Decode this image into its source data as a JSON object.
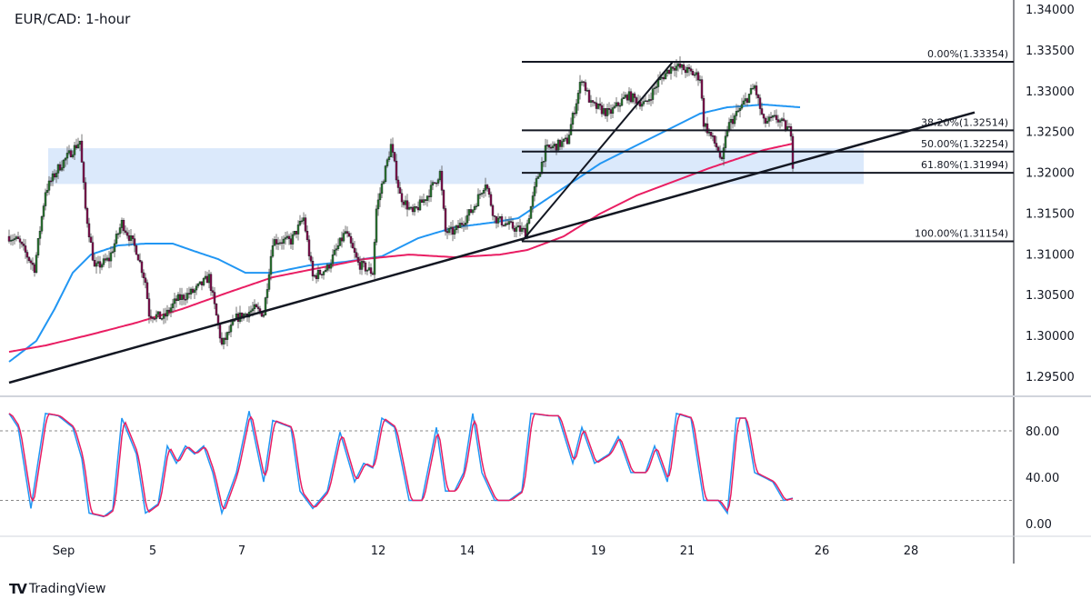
{
  "chart_data": {
    "type": "candlestick",
    "title": "EUR/CAD: 1-hour",
    "price_axis": {
      "ticks": [
        "1.34000",
        "1.33500",
        "1.33000",
        "1.32500",
        "1.32000",
        "1.31500",
        "1.31000",
        "1.30500",
        "1.30000",
        "1.29500"
      ],
      "range": [
        1.29422,
        1.34
      ]
    },
    "time_axis": {
      "ticks": [
        {
          "label": "Sep",
          "bar": 30
        },
        {
          "label": "5",
          "bar": 79
        },
        {
          "label": "7",
          "bar": 128
        },
        {
          "label": "12",
          "bar": 203
        },
        {
          "label": "14",
          "bar": 252
        },
        {
          "label": "19",
          "bar": 324
        },
        {
          "label": "21",
          "bar": 373
        },
        {
          "label": "26",
          "bar": 447
        },
        {
          "label": "28",
          "bar": 496
        }
      ]
    },
    "price_path": [
      [
        0,
        1.31215
      ],
      [
        5,
        1.3116
      ],
      [
        14,
        1.30825
      ],
      [
        20,
        1.31772
      ],
      [
        27,
        1.3205
      ],
      [
        39,
        1.32385
      ],
      [
        42,
        1.3155
      ],
      [
        47,
        1.30825
      ],
      [
        55,
        1.30936
      ],
      [
        62,
        1.31382
      ],
      [
        70,
        1.31048
      ],
      [
        75,
        1.30658
      ],
      [
        77,
        1.30268
      ],
      [
        85,
        1.30212
      ],
      [
        92,
        1.30435
      ],
      [
        102,
        1.30547
      ],
      [
        110,
        1.30714
      ],
      [
        117,
        1.29878
      ],
      [
        125,
        1.30212
      ],
      [
        135,
        1.30324
      ],
      [
        140,
        1.30268
      ],
      [
        145,
        1.3116
      ],
      [
        155,
        1.3116
      ],
      [
        162,
        1.31438
      ],
      [
        167,
        1.30714
      ],
      [
        175,
        1.30825
      ],
      [
        185,
        1.31271
      ],
      [
        192,
        1.30881
      ],
      [
        200,
        1.30769
      ],
      [
        202,
        1.3155
      ],
      [
        210,
        1.32329
      ],
      [
        215,
        1.31716
      ],
      [
        222,
        1.31493
      ],
      [
        230,
        1.31716
      ],
      [
        237,
        1.31995
      ],
      [
        240,
        1.31271
      ],
      [
        245,
        1.31271
      ],
      [
        255,
        1.3155
      ],
      [
        262,
        1.31883
      ],
      [
        267,
        1.31438
      ],
      [
        277,
        1.31326
      ],
      [
        284,
        1.31271
      ],
      [
        290,
        1.31883
      ],
      [
        295,
        1.32273
      ],
      [
        307,
        1.32385
      ],
      [
        315,
        1.33164
      ],
      [
        320,
        1.3283
      ],
      [
        330,
        1.32719
      ],
      [
        340,
        1.32942
      ],
      [
        350,
        1.3283
      ],
      [
        357,
        1.33109
      ],
      [
        365,
        1.33309
      ],
      [
        370,
        1.33276
      ],
      [
        380,
        1.33164
      ],
      [
        382,
        1.32607
      ],
      [
        390,
        1.32273
      ],
      [
        392,
        1.32106
      ],
      [
        395,
        1.32552
      ],
      [
        402,
        1.32775
      ],
      [
        410,
        1.33053
      ],
      [
        415,
        1.32607
      ],
      [
        422,
        1.32663
      ],
      [
        430,
        1.32496
      ],
      [
        431,
        1.32106
      ]
    ],
    "ma_blue": [
      [
        0,
        1.29678
      ],
      [
        15,
        1.29934
      ],
      [
        25,
        1.30324
      ],
      [
        35,
        1.30769
      ],
      [
        45,
        1.30992
      ],
      [
        60,
        1.31104
      ],
      [
        75,
        1.31126
      ],
      [
        90,
        1.31126
      ],
      [
        100,
        1.31048
      ],
      [
        115,
        1.30936
      ],
      [
        130,
        1.30769
      ],
      [
        145,
        1.30769
      ],
      [
        165,
        1.30859
      ],
      [
        185,
        1.30903
      ],
      [
        205,
        1.3097
      ],
      [
        225,
        1.31193
      ],
      [
        245,
        1.31326
      ],
      [
        265,
        1.31382
      ],
      [
        280,
        1.31438
      ],
      [
        295,
        1.31661
      ],
      [
        310,
        1.31883
      ],
      [
        325,
        1.32106
      ],
      [
        345,
        1.32329
      ],
      [
        365,
        1.32552
      ],
      [
        380,
        1.32719
      ],
      [
        395,
        1.32797
      ],
      [
        415,
        1.3283
      ],
      [
        435,
        1.32797
      ]
    ],
    "ma_magenta": [
      [
        0,
        1.298
      ],
      [
        20,
        1.29878
      ],
      [
        45,
        1.30012
      ],
      [
        70,
        1.30157
      ],
      [
        95,
        1.30324
      ],
      [
        120,
        1.30524
      ],
      [
        145,
        1.30714
      ],
      [
        170,
        1.30825
      ],
      [
        195,
        1.30936
      ],
      [
        220,
        1.30992
      ],
      [
        245,
        1.30959
      ],
      [
        270,
        1.30992
      ],
      [
        285,
        1.31048
      ],
      [
        305,
        1.31215
      ],
      [
        325,
        1.31493
      ],
      [
        345,
        1.31716
      ],
      [
        365,
        1.31883
      ],
      [
        385,
        1.3205
      ],
      [
        400,
        1.32162
      ],
      [
        415,
        1.32273
      ],
      [
        431,
        1.32351
      ]
    ],
    "zone": [
      1.31857,
      1.32295
    ],
    "trendline": [
      [
        0,
        1.29422
      ],
      [
        531,
        1.32734
      ]
    ],
    "fib": {
      "start_bar": 282,
      "anchor": [
        [
          282,
          1.31154
        ],
        [
          365,
          1.33354
        ]
      ],
      "levels": [
        {
          "label": "0.00%(1.33354)",
          "price": 1.33354
        },
        {
          "label": "38.20%(1.32514)",
          "price": 1.32514
        },
        {
          "label": "50.00%(1.32254)",
          "price": 1.32254
        },
        {
          "label": "61.80%(1.31994)",
          "price": 1.31994
        },
        {
          "label": "100.00%(1.31154)",
          "price": 1.31154
        }
      ]
    },
    "stochastic": {
      "ticks": [
        "80.00",
        "40.00",
        "0.00"
      ],
      "levels": [
        80,
        20
      ],
      "path": [
        [
          0,
          95
        ],
        [
          5,
          83
        ],
        [
          12,
          13
        ],
        [
          20,
          95
        ],
        [
          27,
          93
        ],
        [
          35,
          83
        ],
        [
          40,
          56
        ],
        [
          44,
          9
        ],
        [
          52,
          6
        ],
        [
          57,
          12
        ],
        [
          62,
          91
        ],
        [
          70,
          60
        ],
        [
          75,
          9
        ],
        [
          82,
          17
        ],
        [
          87,
          67
        ],
        [
          92,
          52
        ],
        [
          97,
          67
        ],
        [
          102,
          60
        ],
        [
          107,
          67
        ],
        [
          112,
          44
        ],
        [
          117,
          9
        ],
        [
          125,
          44
        ],
        [
          132,
          97
        ],
        [
          140,
          36
        ],
        [
          145,
          89
        ],
        [
          155,
          83
        ],
        [
          160,
          28
        ],
        [
          167,
          13
        ],
        [
          175,
          28
        ],
        [
          182,
          79
        ],
        [
          190,
          36
        ],
        [
          195,
          52
        ],
        [
          200,
          48
        ],
        [
          205,
          91
        ],
        [
          212,
          83
        ],
        [
          220,
          20
        ],
        [
          227,
          20
        ],
        [
          235,
          83
        ],
        [
          240,
          28
        ],
        [
          245,
          28
        ],
        [
          250,
          44
        ],
        [
          255,
          95
        ],
        [
          260,
          44
        ],
        [
          267,
          20
        ],
        [
          275,
          20
        ],
        [
          282,
          28
        ],
        [
          287,
          95
        ],
        [
          297,
          93
        ],
        [
          302,
          93
        ],
        [
          310,
          52
        ],
        [
          315,
          83
        ],
        [
          322,
          52
        ],
        [
          330,
          60
        ],
        [
          335,
          75
        ],
        [
          342,
          44
        ],
        [
          350,
          44
        ],
        [
          355,
          67
        ],
        [
          362,
          36
        ],
        [
          367,
          95
        ],
        [
          375,
          91
        ],
        [
          382,
          20
        ],
        [
          390,
          20
        ],
        [
          395,
          9
        ],
        [
          400,
          91
        ],
        [
          405,
          91
        ],
        [
          410,
          44
        ],
        [
          415,
          40
        ],
        [
          420,
          36
        ],
        [
          426,
          20
        ],
        [
          431,
          22
        ]
      ]
    }
  },
  "branding": {
    "logo": "TradingView"
  }
}
